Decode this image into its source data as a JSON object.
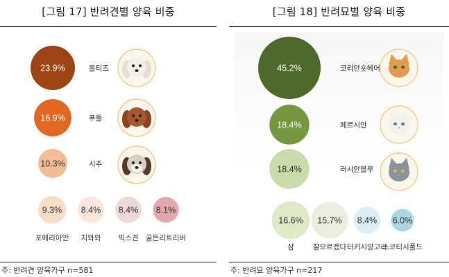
{
  "panels": [
    {
      "title": "[그림 17] 반려견별 양육 비중",
      "footnote": "주: 반려견 양육가구 n=581"
    },
    {
      "title": "[그림 18] 반려묘별 양육 비중",
      "footnote": "주: 반려묘 양육가구 n=217"
    }
  ],
  "chart_data": [
    {
      "type": "bubble",
      "title": "[그림 17] 반려견별 양육 비중",
      "categories": [
        "몰티즈",
        "푸들",
        "시추",
        "포메리아안",
        "치와와",
        "믹스견",
        "골든리트리버"
      ],
      "values": [
        23.9,
        16.9,
        10.3,
        9.3,
        8.4,
        8.4,
        8.1
      ],
      "value_labels": [
        "23.9%",
        "16.9%",
        "10.3%",
        "9.3%",
        "8.4%",
        "8.4%",
        "8.1%"
      ],
      "colors": [
        "#9b4512",
        "#e06822",
        "#f2bd94",
        "#f8ddc6",
        "#fbe6d9",
        "#eed8d8",
        "#e3a8ac"
      ],
      "label_colors": [
        "#ffffff",
        "#ffffff",
        "#333333",
        "#333333",
        "#333333",
        "#333333",
        "#333333"
      ],
      "photo_icons": [
        "maltese-dog-icon",
        "poodle-dog-icon",
        "shih-tzu-dog-icon"
      ],
      "footnote": "주: 반려견 양육가구 n=581"
    },
    {
      "type": "bubble",
      "title": "[그림 18] 반려묘별 양육 비중",
      "categories": [
        "코리안숏헤어",
        "페르시안",
        "러시안블루",
        "샴",
        "잘모르겠다",
        "터키시앙고라",
        "스코티시폴드"
      ],
      "values": [
        45.2,
        18.4,
        18.4,
        16.6,
        15.7,
        8.4,
        6.0
      ],
      "value_labels": [
        "45.2%",
        "18.4%",
        "18.4%",
        "16.6%",
        "15.7%",
        "8.4%",
        "6.0%"
      ],
      "colors": [
        "#4d6a2c",
        "#76973e",
        "#c9dba9",
        "#dee9c6",
        "#eaefdd",
        "#dbeef4",
        "#a9d6e2"
      ],
      "label_colors": [
        "#ffffff",
        "#ffffff",
        "#333333",
        "#333333",
        "#333333",
        "#333333",
        "#333333"
      ],
      "photo_icons": [
        "korean-shorthair-cat-icon",
        "persian-cat-icon",
        "russian-blue-cat-icon"
      ],
      "footnote": "주: 반려묘 양육가구 n=217"
    }
  ]
}
